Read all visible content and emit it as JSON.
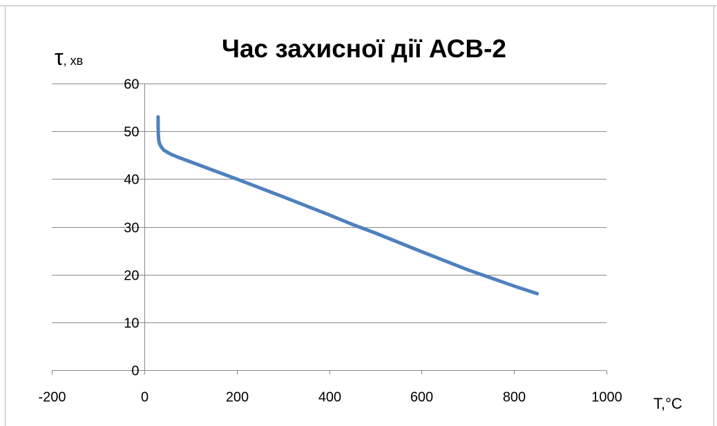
{
  "colors": {
    "series": "#4f81bd",
    "grid": "#878787",
    "frame": "#b3b3b3"
  },
  "chart_data": {
    "type": "line",
    "title": "Час захисної дії АСВ-2",
    "xlabel": "Т,°С",
    "ylabel": {
      "symbol": "τ",
      "unit": ", хв"
    },
    "xlim": [
      -200,
      1000
    ],
    "ylim": [
      0,
      60
    ],
    "x_ticks": [
      "-200",
      "0",
      "200",
      "400",
      "600",
      "800",
      "1000"
    ],
    "y_ticks": [
      "0",
      "10",
      "20",
      "30",
      "40",
      "50",
      "60"
    ],
    "grid": true,
    "legend": "none",
    "series": [
      {
        "x": [
          30,
          30,
          30.5,
          31,
          32,
          34,
          37,
          42,
          50,
          60,
          75,
          100,
          150,
          200,
          300,
          400,
          450,
          500,
          600,
          700,
          750,
          800,
          850
        ],
        "y": [
          53,
          51,
          49.5,
          48.5,
          47.8,
          47.2,
          46.7,
          46.1,
          45.6,
          45.1,
          44.5,
          43.6,
          41.8,
          40,
          36.3,
          32.5,
          30.5,
          28.7,
          24.8,
          21,
          19.3,
          17.6,
          16
        ]
      }
    ]
  }
}
